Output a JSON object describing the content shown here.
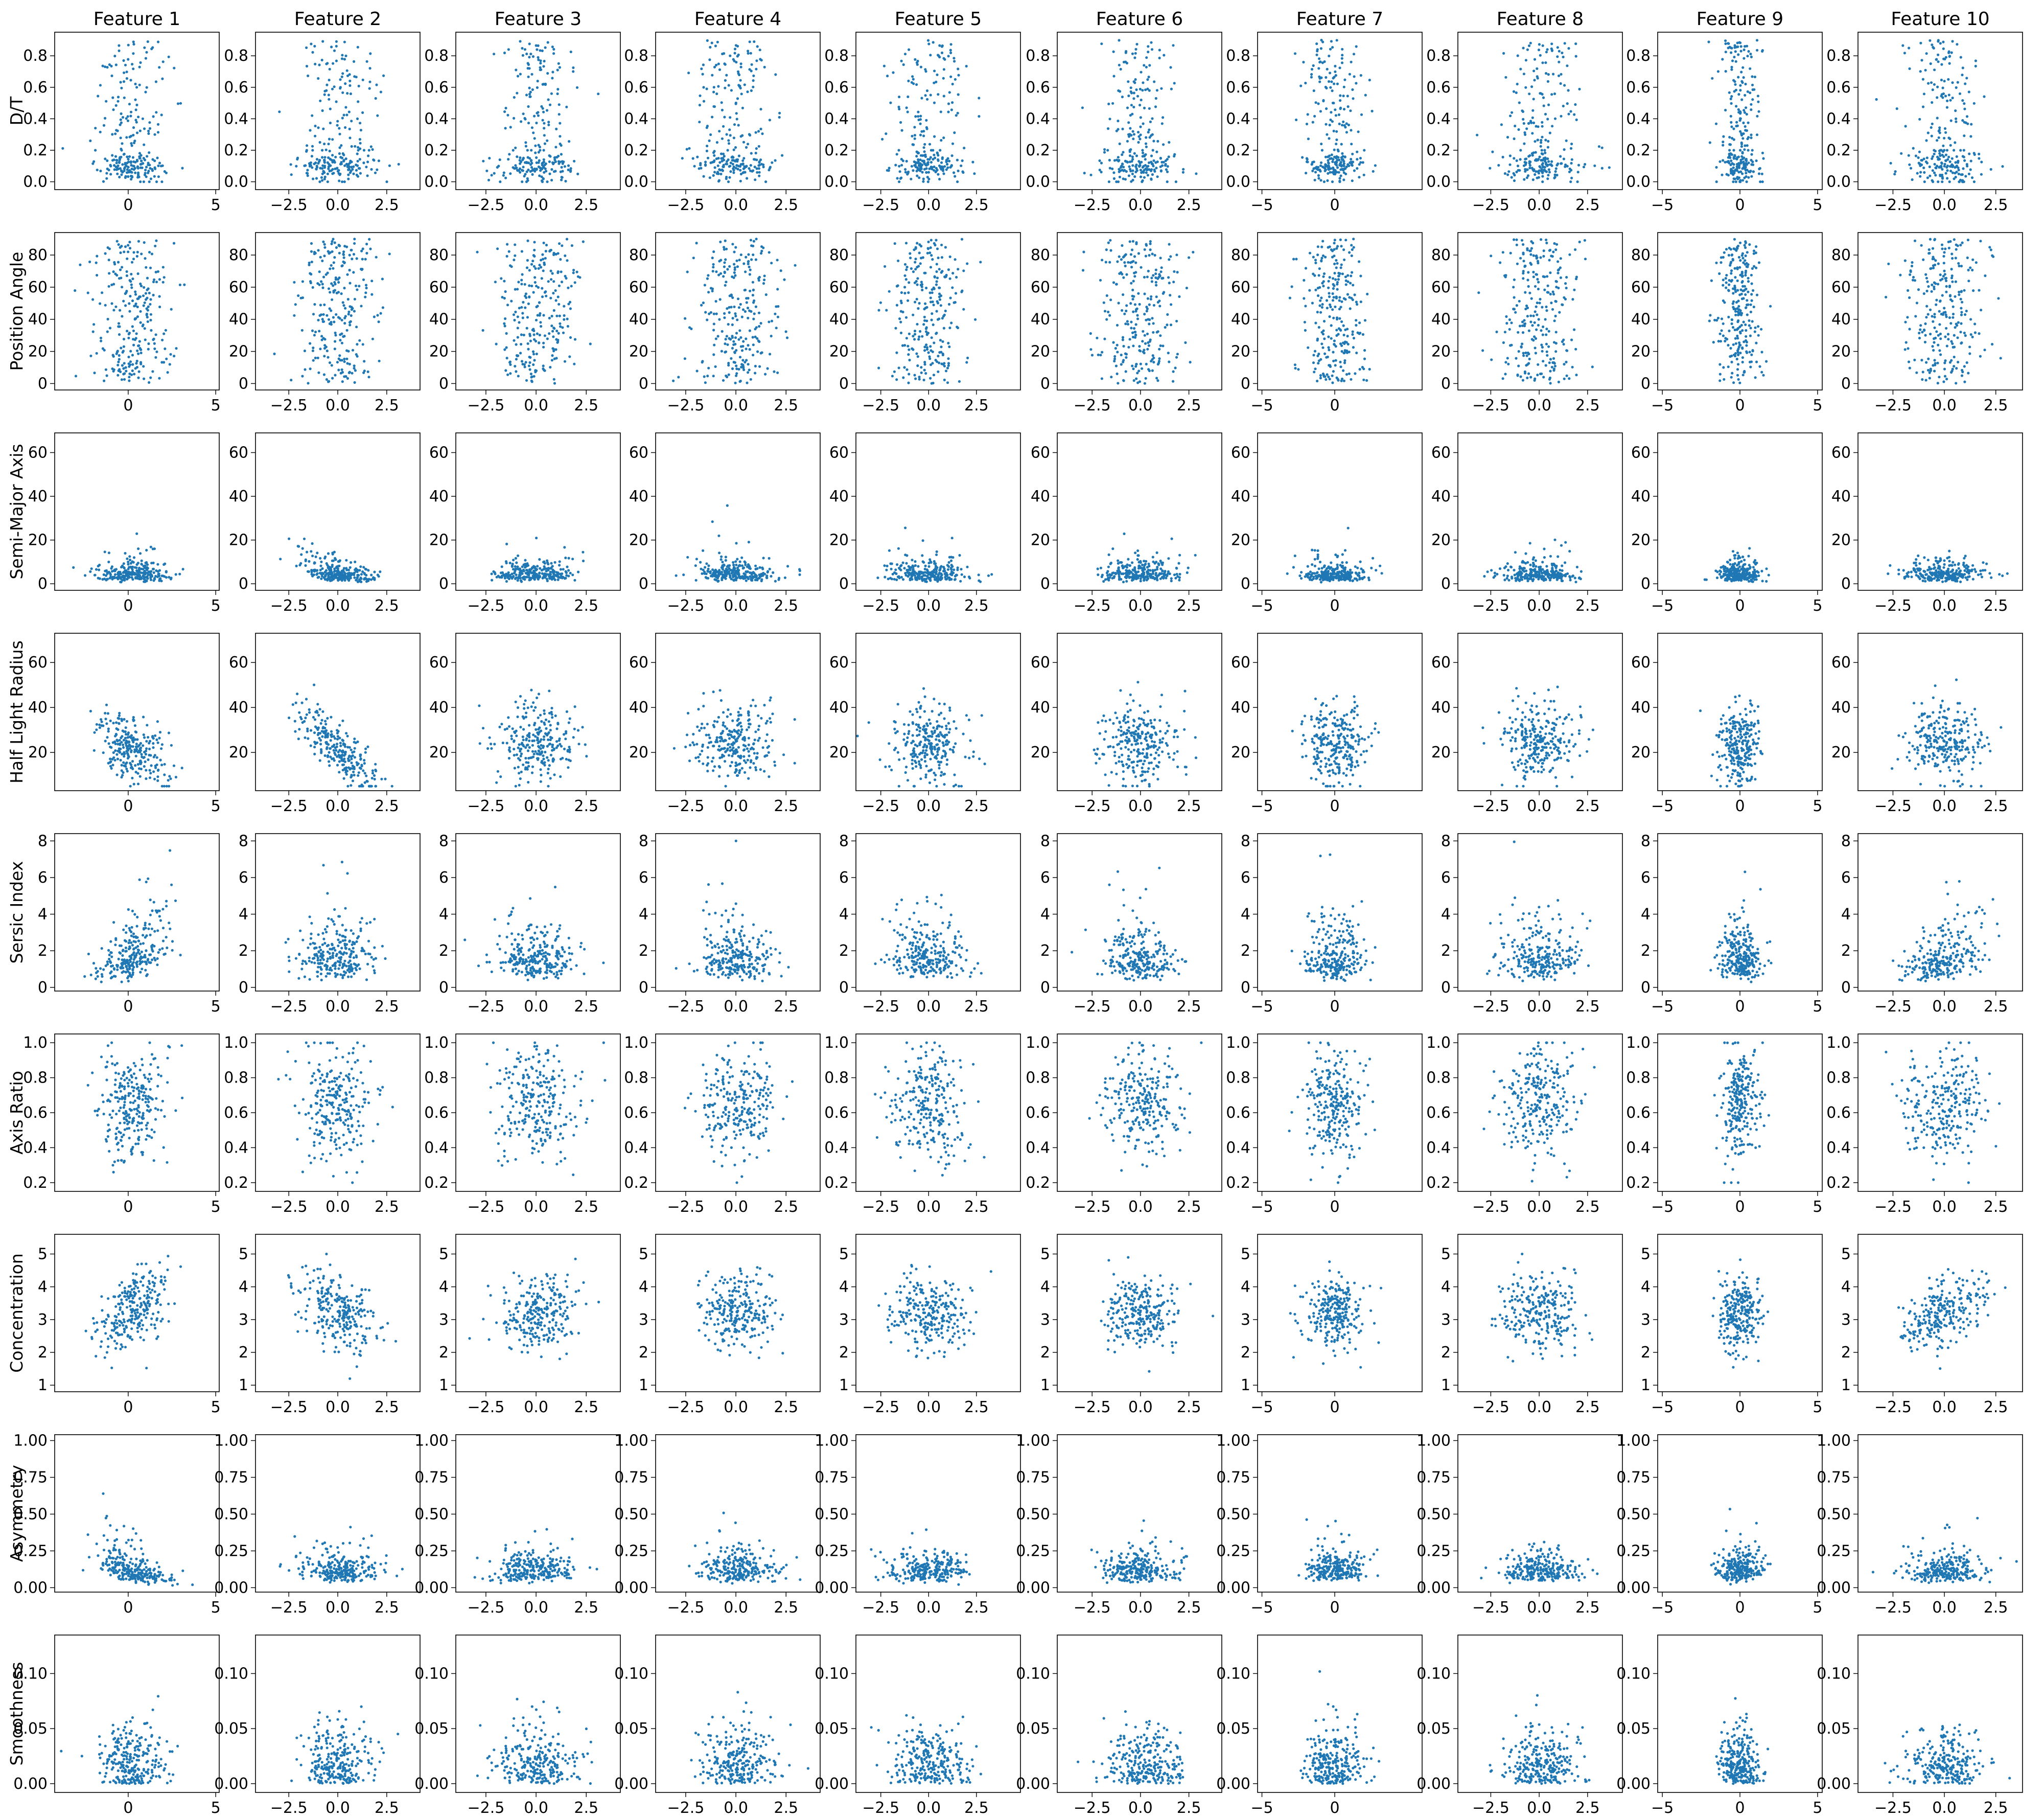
{
  "figure": {
    "column_titles": [
      "Feature 1",
      "Feature 2",
      "Feature 3",
      "Feature 4",
      "Feature 5",
      "Feature 6",
      "Feature 7",
      "Feature 8",
      "Feature 9",
      "Feature 10"
    ],
    "row_labels": [
      "D/T",
      "Position Angle",
      "Semi-Major Axis",
      "Half Light Radius",
      "Sersic Index",
      "Axis Ratio",
      "Concentration",
      "Asymmetry",
      "Smoothness"
    ],
    "point_color": "#1f77b4"
  },
  "chart_data": {
    "type": "scatter",
    "layout": "grid of scatter plots: rows = galaxy properties (y), columns = latent features (x)",
    "grid": {
      "rows": 9,
      "cols": 10
    },
    "columns": [
      {
        "title": "Feature 1",
        "xlim": [
          -4.2,
          5.2
        ],
        "xticks": [
          0,
          5
        ],
        "xtick_labels": [
          "0",
          "5"
        ]
      },
      {
        "title": "Feature 2",
        "xlim": [
          -4.2,
          4.2
        ],
        "xticks": [
          -2.5,
          0,
          2.5
        ],
        "xtick_labels": [
          "−2.5",
          "0.0",
          "2.5"
        ]
      },
      {
        "title": "Feature 3",
        "xlim": [
          -4.0,
          4.2
        ],
        "xticks": [
          -2.5,
          0,
          2.5
        ],
        "xtick_labels": [
          "−2.5",
          "0.0",
          "2.5"
        ]
      },
      {
        "title": "Feature 4",
        "xlim": [
          -4.0,
          4.2
        ],
        "xticks": [
          -2.5,
          0,
          2.5
        ],
        "xtick_labels": [
          "−2.5",
          "0.0",
          "2.5"
        ]
      },
      {
        "title": "Feature 5",
        "xlim": [
          -3.8,
          4.8
        ],
        "xticks": [
          -2.5,
          0,
          2.5
        ],
        "xtick_labels": [
          "−2.5",
          "0.0",
          "2.5"
        ]
      },
      {
        "title": "Feature 6",
        "xlim": [
          -4.3,
          4.2
        ],
        "xticks": [
          -2.5,
          0,
          2.5
        ],
        "xtick_labels": [
          "−2.5",
          "0.0",
          "2.5"
        ]
      },
      {
        "title": "Feature 7",
        "xlim": [
          -5.3,
          6.0
        ],
        "xticks": [
          -5,
          0
        ],
        "xtick_labels": [
          "−5",
          "0"
        ]
      },
      {
        "title": "Feature 8",
        "xlim": [
          -4.2,
          4.3
        ],
        "xticks": [
          -2.5,
          0,
          2.5
        ],
        "xtick_labels": [
          "−2.5",
          "0.0",
          "2.5"
        ]
      },
      {
        "title": "Feature 9",
        "xlim": [
          -5.3,
          5.3
        ],
        "xticks": [
          -5,
          0,
          5
        ],
        "xtick_labels": [
          "−5",
          "0",
          "5"
        ]
      },
      {
        "title": "Feature 10",
        "xlim": [
          -4.2,
          3.8
        ],
        "xticks": [
          -2.5,
          0,
          2.5
        ],
        "xtick_labels": [
          "−2.5",
          "0.0",
          "2.5"
        ]
      }
    ],
    "rows": [
      {
        "label": "D/T",
        "ylim": [
          -0.05,
          0.95
        ],
        "yticks": [
          0,
          0.2,
          0.4,
          0.6,
          0.8
        ],
        "ytick_labels": [
          "0.0",
          "0.2",
          "0.4",
          "0.6",
          "0.8"
        ]
      },
      {
        "label": "Position Angle",
        "ylim": [
          -4,
          94
        ],
        "yticks": [
          0,
          20,
          40,
          60,
          80
        ],
        "ytick_labels": [
          "0",
          "20",
          "40",
          "60",
          "80"
        ]
      },
      {
        "label": "Semi-Major Axis",
        "ylim": [
          -3,
          69
        ],
        "yticks": [
          0,
          20,
          40,
          60
        ],
        "ytick_labels": [
          "0",
          "20",
          "40",
          "60"
        ]
      },
      {
        "label": "Half Light Radius",
        "ylim": [
          3,
          73
        ],
        "yticks": [
          20,
          40,
          60
        ],
        "ytick_labels": [
          "20",
          "40",
          "60"
        ]
      },
      {
        "label": "Sersic Index",
        "ylim": [
          -0.2,
          8.4
        ],
        "yticks": [
          0,
          2,
          4,
          6,
          8
        ],
        "ytick_labels": [
          "0",
          "2",
          "4",
          "6",
          "8"
        ]
      },
      {
        "label": "Axis Ratio",
        "ylim": [
          0.15,
          1.05
        ],
        "yticks": [
          0.2,
          0.4,
          0.6,
          0.8,
          1.0
        ],
        "ytick_labels": [
          "0.2",
          "0.4",
          "0.6",
          "0.8",
          "1.0"
        ]
      },
      {
        "label": "Concentration",
        "ylim": [
          0.8,
          5.6
        ],
        "yticks": [
          1,
          2,
          3,
          4,
          5
        ],
        "ytick_labels": [
          "1",
          "2",
          "3",
          "4",
          "5"
        ]
      },
      {
        "label": "Asymmetry",
        "ylim": [
          -0.03,
          1.04
        ],
        "yticks": [
          0,
          0.25,
          0.5,
          0.75,
          1.0
        ],
        "ytick_labels": [
          "0.00",
          "0.25",
          "0.50",
          "0.75",
          "1.00"
        ]
      },
      {
        "label": "Smoothness",
        "ylim": [
          -0.008,
          0.135
        ],
        "yticks": [
          0,
          0.05,
          0.1
        ],
        "ytick_labels": [
          "0.00",
          "0.05",
          "0.10"
        ]
      }
    ],
    "series": [
      {
        "description": "dense point clouds, several thousand galaxies per panel; samples drawn from approximate distributions",
        "x_center": 0,
        "x_spread": 1,
        "y_distribution": {
          "D/T": "mixture: 55% uniform-ish band 0.0-0.2 with cap at 0.2, 45% spread 0.2-0.9",
          "Position Angle": "uniform 0-90",
          "Semi-Major Axis": "median ~5, long tail to ~65",
          "Half Light Radius": "median ~20, range 5-70",
          "Sersic Index": "median ~1.5, tail to 8",
          "Axis Ratio": "range 0.2-1.0, median ~0.65",
          "Concentration": "median ~3.2, range 1.5-5",
          "Asymmetry": "median ~0.12, tail to 1.0",
          "Smoothness": "median ~0.02, tail to 0.13"
        }
      }
    ],
    "grid_lines": false,
    "legend": "none"
  }
}
